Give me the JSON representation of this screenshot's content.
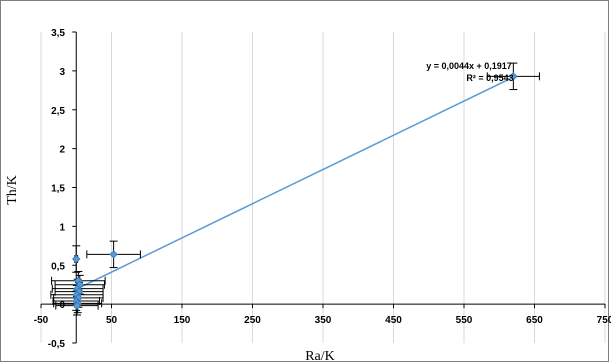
{
  "chart_data": {
    "type": "scatter",
    "xlabel": "Ra/K",
    "ylabel": "Th/K",
    "xlim": [
      -50,
      750
    ],
    "ylim": [
      -0.5,
      3.5
    ],
    "x_ticks": [
      -50,
      50,
      150,
      250,
      350,
      450,
      550,
      650,
      750
    ],
    "x_tick_labels": [
      "-50",
      "50",
      "150",
      "250",
      "350",
      "450",
      "550",
      "650",
      "750"
    ],
    "y_ticks": [
      -0.5,
      0,
      0.5,
      1,
      1.5,
      2,
      2.5,
      3,
      3.5
    ],
    "y_tick_labels": [
      "-0,5",
      "0",
      "0,5",
      "1",
      "1,5",
      "2",
      "2,5",
      "3",
      "3,5"
    ],
    "grid": "vertical",
    "colors": {
      "marker": "#5b9bd5",
      "marker_edge": "#2e75b6",
      "trendline": "#5b9bd5",
      "error_bar": "#000000",
      "gridline": "#d9d9d9",
      "axis": "#000000"
    },
    "points": [
      {
        "x": 620,
        "y": 2.93,
        "xerr": 37,
        "yerr": 0.17
      },
      {
        "x": 53,
        "y": 0.64,
        "xerr": 38,
        "yerr": 0.17
      },
      {
        "x": 0,
        "y": 0.58,
        "xerr": 2,
        "yerr": 0.17
      },
      {
        "x": 3,
        "y": 0.3,
        "xerr": 38,
        "yerr": 0.12
      },
      {
        "x": 5,
        "y": 0.25,
        "xerr": 35,
        "yerr": 0.12
      },
      {
        "x": 2,
        "y": 0.2,
        "xerr": 36,
        "yerr": 0.12
      },
      {
        "x": 4,
        "y": 0.16,
        "xerr": 34,
        "yerr": 0.12
      },
      {
        "x": 1,
        "y": 0.12,
        "xerr": 37,
        "yerr": 0.12
      },
      {
        "x": 3,
        "y": 0.08,
        "xerr": 35,
        "yerr": 0.12
      },
      {
        "x": 0,
        "y": 0.04,
        "xerr": 33,
        "yerr": 0.12
      },
      {
        "x": 2,
        "y": 0.01,
        "xerr": 34,
        "yerr": 0.12
      },
      {
        "x": 1,
        "y": -0.02,
        "xerr": 30,
        "yerr": 0.12
      }
    ],
    "trendline": {
      "slope": 0.0044,
      "intercept": 0.1917,
      "x_range": [
        -5,
        620
      ]
    },
    "annotations": {
      "equation": "y = 0,0044x + 0,1917",
      "r_squared": "R² = 0,9543"
    }
  }
}
